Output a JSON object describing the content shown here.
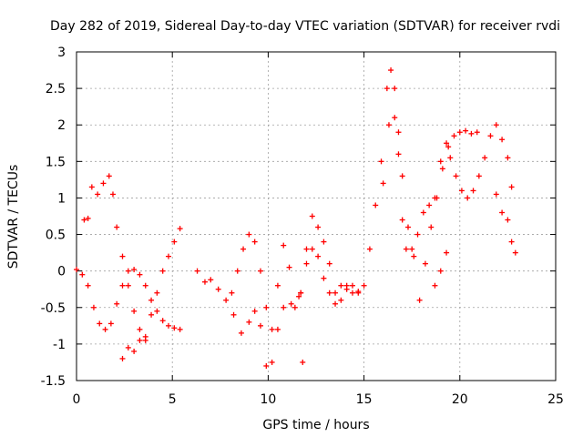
{
  "chart_data": {
    "type": "scatter",
    "title": "Day 282 of 2019, Sidereal Day-to-day VTEC variation (SDTVAR) for receiver rvdi",
    "xlabel": "GPS time / hours",
    "ylabel": "SDTVAR / TECUs",
    "xlim": [
      0,
      25
    ],
    "ylim": [
      -1.5,
      3
    ],
    "x_ticks": [
      0,
      5,
      10,
      15,
      20,
      25
    ],
    "y_ticks": [
      -1.5,
      -1,
      -0.5,
      0,
      0.5,
      1,
      1.5,
      2,
      2.5,
      3
    ],
    "grid": true,
    "marker": "+",
    "color": "#ff0000",
    "series": [
      {
        "points": [
          [
            0.0,
            0.02
          ],
          [
            0.3,
            -0.05
          ],
          [
            0.6,
            -0.2
          ],
          [
            0.9,
            -0.5
          ],
          [
            1.2,
            -0.72
          ],
          [
            1.5,
            -0.8
          ],
          [
            1.8,
            -0.72
          ],
          [
            2.1,
            -0.45
          ],
          [
            2.4,
            -0.2
          ],
          [
            2.7,
            0.0
          ],
          [
            3.0,
            0.02
          ],
          [
            3.3,
            -0.05
          ],
          [
            3.6,
            -0.2
          ],
          [
            3.9,
            -0.4
          ],
          [
            4.2,
            -0.55
          ],
          [
            4.5,
            -0.68
          ],
          [
            4.8,
            -0.75
          ],
          [
            5.1,
            -0.78
          ],
          [
            5.4,
            -0.8
          ]
        ]
      },
      {
        "points": [
          [
            0.4,
            0.7
          ],
          [
            0.6,
            0.72
          ],
          [
            0.8,
            1.15
          ],
          [
            1.1,
            1.05
          ],
          [
            1.4,
            1.2
          ],
          [
            1.7,
            1.3
          ],
          [
            1.9,
            1.05
          ],
          [
            2.1,
            0.6
          ],
          [
            2.4,
            0.2
          ],
          [
            2.7,
            -0.2
          ],
          [
            3.0,
            -0.55
          ],
          [
            3.3,
            -0.8
          ],
          [
            3.6,
            -0.95
          ],
          [
            2.4,
            -1.2
          ],
          [
            2.7,
            -1.05
          ],
          [
            3.0,
            -1.1
          ],
          [
            3.3,
            -0.95
          ],
          [
            3.6,
            -0.9
          ],
          [
            3.9,
            -0.6
          ],
          [
            4.2,
            -0.3
          ],
          [
            4.5,
            0.0
          ],
          [
            4.8,
            0.2
          ],
          [
            5.1,
            0.4
          ],
          [
            5.4,
            0.58
          ]
        ]
      },
      {
        "points": [
          [
            6.3,
            0.0
          ],
          [
            6.7,
            -0.15
          ],
          [
            7.0,
            -0.12
          ],
          [
            7.4,
            -0.25
          ],
          [
            7.8,
            -0.4
          ],
          [
            8.2,
            -0.6
          ],
          [
            8.6,
            -0.85
          ],
          [
            9.0,
            -0.7
          ],
          [
            9.3,
            -0.55
          ],
          [
            9.6,
            -0.75
          ],
          [
            9.9,
            -1.3
          ],
          [
            10.2,
            -1.25
          ],
          [
            10.5,
            -0.8
          ],
          [
            10.8,
            -0.5
          ],
          [
            11.2,
            -0.45
          ],
          [
            11.6,
            -0.35
          ],
          [
            11.8,
            -1.25
          ]
        ]
      },
      {
        "points": [
          [
            8.1,
            -0.3
          ],
          [
            8.4,
            0.0
          ],
          [
            8.7,
            0.3
          ],
          [
            9.0,
            0.5
          ],
          [
            9.3,
            0.4
          ],
          [
            9.6,
            0.0
          ],
          [
            9.9,
            -0.5
          ],
          [
            10.2,
            -0.8
          ],
          [
            10.5,
            -0.2
          ],
          [
            10.8,
            0.35
          ],
          [
            11.1,
            0.05
          ],
          [
            11.4,
            -0.5
          ],
          [
            11.7,
            -0.3
          ],
          [
            12.0,
            0.1
          ],
          [
            12.3,
            0.3
          ],
          [
            12.6,
            0.2
          ],
          [
            12.9,
            -0.1
          ],
          [
            13.2,
            -0.3
          ],
          [
            13.5,
            -0.45
          ],
          [
            13.8,
            -0.2
          ],
          [
            14.1,
            -0.2
          ],
          [
            14.4,
            -0.3
          ],
          [
            14.7,
            -0.28
          ]
        ]
      },
      {
        "points": [
          [
            11.7,
            -0.3
          ],
          [
            12.0,
            0.3
          ],
          [
            12.3,
            0.75
          ],
          [
            12.6,
            0.6
          ],
          [
            12.9,
            0.4
          ],
          [
            13.2,
            0.1
          ],
          [
            13.5,
            -0.3
          ],
          [
            13.8,
            -0.4
          ],
          [
            14.1,
            -0.25
          ],
          [
            14.4,
            -0.2
          ],
          [
            14.7,
            -0.3
          ],
          [
            15.0,
            -0.2
          ],
          [
            15.3,
            0.3
          ],
          [
            15.6,
            0.9
          ],
          [
            15.9,
            1.5
          ],
          [
            16.2,
            2.5
          ],
          [
            16.4,
            2.75
          ],
          [
            16.6,
            2.5
          ],
          [
            16.8,
            1.6
          ],
          [
            17.0,
            0.7
          ],
          [
            17.2,
            0.3
          ],
          [
            17.5,
            0.3
          ],
          [
            17.8,
            0.5
          ],
          [
            18.1,
            0.8
          ],
          [
            18.4,
            0.9
          ],
          [
            18.7,
            1.0
          ],
          [
            19.0,
            1.5
          ],
          [
            19.3,
            1.75
          ]
        ]
      },
      {
        "points": [
          [
            16.0,
            1.2
          ],
          [
            16.3,
            2.0
          ],
          [
            16.6,
            2.1
          ],
          [
            16.8,
            1.9
          ],
          [
            17.0,
            1.3
          ],
          [
            17.3,
            0.6
          ],
          [
            17.6,
            0.2
          ],
          [
            17.9,
            -0.4
          ],
          [
            18.2,
            0.1
          ],
          [
            18.5,
            0.6
          ],
          [
            18.8,
            1.0
          ],
          [
            19.1,
            1.4
          ],
          [
            19.4,
            1.7
          ],
          [
            19.7,
            1.85
          ],
          [
            20.0,
            1.9
          ],
          [
            20.3,
            1.92
          ],
          [
            20.6,
            1.88
          ],
          [
            20.9,
            1.9
          ],
          [
            18.7,
            -0.2
          ],
          [
            19.0,
            0.0
          ],
          [
            19.3,
            0.25
          ]
        ]
      },
      {
        "points": [
          [
            19.5,
            1.55
          ],
          [
            19.8,
            1.3
          ],
          [
            20.1,
            1.1
          ],
          [
            20.4,
            1.0
          ],
          [
            20.7,
            1.1
          ],
          [
            21.0,
            1.3
          ],
          [
            21.3,
            1.55
          ],
          [
            21.6,
            1.85
          ],
          [
            21.9,
            2.0
          ],
          [
            22.2,
            1.8
          ],
          [
            22.5,
            1.55
          ],
          [
            22.7,
            1.15
          ],
          [
            21.9,
            1.05
          ],
          [
            22.2,
            0.8
          ],
          [
            22.5,
            0.7
          ],
          [
            22.7,
            0.4
          ],
          [
            22.9,
            0.25
          ]
        ]
      }
    ]
  }
}
